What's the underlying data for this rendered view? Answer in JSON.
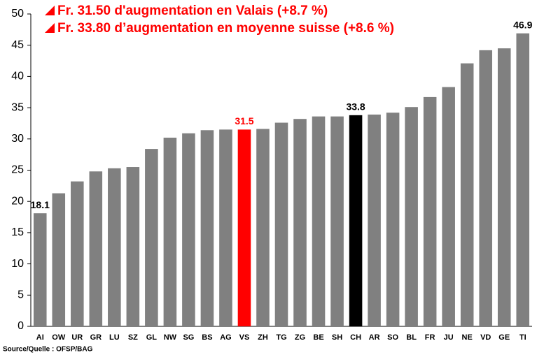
{
  "chart_data": {
    "type": "bar",
    "annotations": [
      "Fr. 31.50 d'augmentation en Valais (+8.7 %)",
      "Fr. 33.80 d’augmentation en moyenne suisse (+8.6 %)"
    ],
    "source": "Source/Quelle : OFSP/BAG",
    "categories": [
      "AI",
      "OW",
      "UR",
      "GR",
      "LU",
      "SZ",
      "GL",
      "NW",
      "SG",
      "BS",
      "AG",
      "VS",
      "ZH",
      "TG",
      "ZG",
      "BE",
      "SH",
      "CH",
      "AR",
      "SO",
      "BL",
      "FR",
      "JU",
      "NE",
      "VD",
      "GE",
      "TI"
    ],
    "values": [
      18.1,
      21.3,
      23.2,
      24.8,
      25.3,
      25.5,
      28.4,
      30.2,
      30.9,
      31.4,
      31.5,
      31.5,
      31.6,
      32.6,
      33.2,
      33.6,
      33.6,
      33.8,
      33.9,
      34.2,
      35.1,
      36.7,
      38.3,
      42.1,
      44.2,
      44.5,
      46.9
    ],
    "value_labels": [
      "18.1",
      null,
      null,
      null,
      null,
      null,
      null,
      null,
      null,
      null,
      null,
      "31.5",
      null,
      null,
      null,
      null,
      null,
      "33.8",
      null,
      null,
      null,
      null,
      null,
      null,
      null,
      null,
      "46.9"
    ],
    "colors": [
      "#808080",
      "#808080",
      "#808080",
      "#808080",
      "#808080",
      "#808080",
      "#808080",
      "#808080",
      "#808080",
      "#808080",
      "#808080",
      "#ff0000",
      "#808080",
      "#808080",
      "#808080",
      "#808080",
      "#808080",
      "#000000",
      "#808080",
      "#808080",
      "#808080",
      "#808080",
      "#808080",
      "#808080",
      "#808080",
      "#808080",
      "#808080"
    ],
    "ylim": [
      0,
      50
    ],
    "yticks": [
      0,
      5,
      10,
      15,
      20,
      25,
      30,
      35,
      40,
      45,
      50
    ],
    "grid": false
  }
}
